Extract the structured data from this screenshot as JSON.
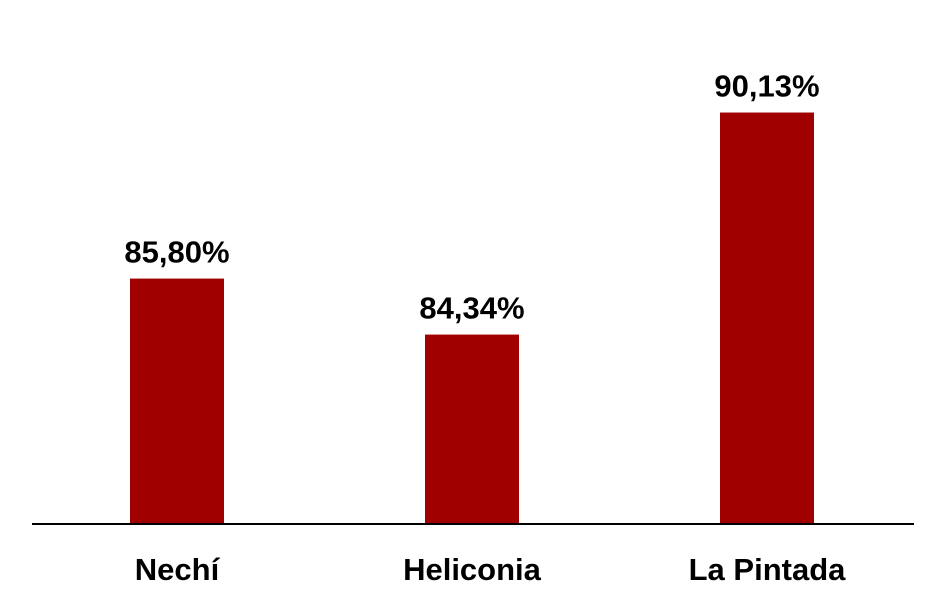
{
  "chart_data": {
    "type": "bar",
    "title": "",
    "xlabel": "",
    "ylabel": "",
    "categories": [
      "Nechí",
      "Heliconia",
      "La Pintada"
    ],
    "values": [
      85.8,
      84.34,
      90.13
    ],
    "data_labels": [
      "85,80%",
      "84,34%",
      "90,13%"
    ],
    "value_unit": "%",
    "bar_color": "#a00000",
    "axis_color": "#000000",
    "ylim": [
      79.4,
      91.5
    ],
    "grid": false,
    "legend": "none"
  }
}
